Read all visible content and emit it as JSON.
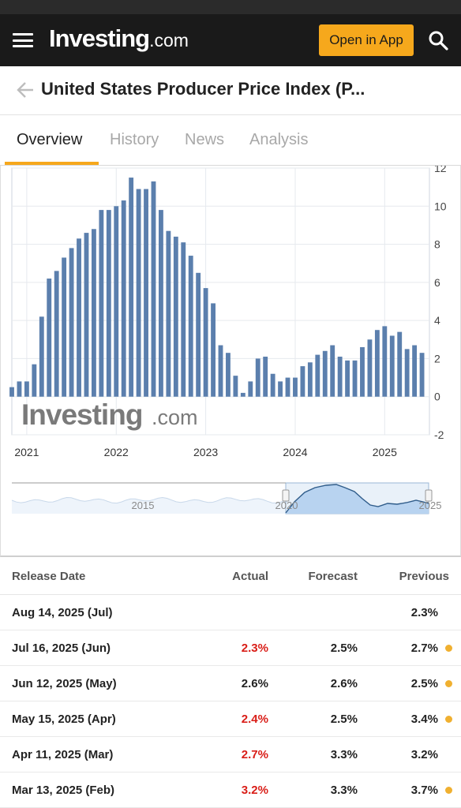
{
  "header": {
    "logo_main": "Investing",
    "logo_suffix": ".com",
    "open_app_label": "Open in App"
  },
  "title": "United States Producer Price Index (P...",
  "tabs": [
    {
      "label": "Overview",
      "active": true
    },
    {
      "label": "History",
      "active": false
    },
    {
      "label": "News",
      "active": false
    },
    {
      "label": "Analysis",
      "active": false
    }
  ],
  "watermark": {
    "main": "Investing",
    "suffix": ".com"
  },
  "colors": {
    "accent": "#f6a81c",
    "bar": "#5b7fad",
    "negative": "#d91e18",
    "revision_dot": "#f0b030"
  },
  "chart_data": {
    "type": "bar",
    "title": "",
    "xlabel": "",
    "ylabel": "",
    "ylim": [
      -2,
      12
    ],
    "y_ticks": [
      "12",
      "10",
      "8",
      "6",
      "4",
      "2",
      "0",
      "-2"
    ],
    "x_ticks": [
      "2021",
      "2022",
      "2023",
      "2024",
      "2025"
    ],
    "x_range": [
      "2020-11",
      "2025-07"
    ],
    "grid": true,
    "series": [
      {
        "x": [
          "2020-11",
          "2020-12",
          "2021-01",
          "2021-02",
          "2021-03",
          "2021-04",
          "2021-05",
          "2021-06",
          "2021-07",
          "2021-08",
          "2021-09",
          "2021-10",
          "2021-11",
          "2021-12",
          "2022-01",
          "2022-02",
          "2022-03",
          "2022-04",
          "2022-05",
          "2022-06",
          "2022-07",
          "2022-08",
          "2022-09",
          "2022-10",
          "2022-11",
          "2022-12",
          "2023-01",
          "2023-02",
          "2023-03",
          "2023-04",
          "2023-05",
          "2023-06",
          "2023-07",
          "2023-08",
          "2023-09",
          "2023-10",
          "2023-11",
          "2023-12",
          "2024-01",
          "2024-02",
          "2024-03",
          "2024-04",
          "2024-05",
          "2024-06",
          "2024-07",
          "2024-08",
          "2024-09",
          "2024-10",
          "2024-11",
          "2024-12",
          "2025-01",
          "2025-02",
          "2025-03",
          "2025-04",
          "2025-05",
          "2025-06"
        ],
        "values": [
          0.5,
          0.8,
          0.8,
          1.7,
          4.2,
          6.2,
          6.6,
          7.3,
          7.8,
          8.3,
          8.6,
          8.8,
          9.8,
          9.8,
          10.0,
          10.3,
          11.5,
          10.9,
          10.9,
          11.3,
          9.8,
          8.7,
          8.4,
          8.1,
          7.4,
          6.5,
          5.7,
          4.9,
          2.7,
          2.3,
          1.1,
          0.2,
          0.8,
          2.0,
          2.1,
          1.2,
          0.8,
          1.0,
          1.0,
          1.6,
          1.8,
          2.2,
          2.4,
          2.7,
          2.1,
          1.9,
          1.9,
          2.6,
          3.0,
          3.5,
          3.7,
          3.2,
          3.4,
          2.5,
          2.7,
          2.3
        ]
      }
    ],
    "navigator": {
      "labels": [
        "2015",
        "2020",
        "2025"
      ]
    }
  },
  "table": {
    "headers": {
      "date": "Release Date",
      "actual": "Actual",
      "forecast": "Forecast",
      "previous": "Previous"
    },
    "rows": [
      {
        "date": "Aug 14, 2025 (Jul)",
        "actual": "",
        "actual_color": "",
        "forecast": "",
        "previous": "2.3%",
        "revised": false
      },
      {
        "date": "Jul 16, 2025 (Jun)",
        "actual": "2.3%",
        "actual_color": "red",
        "forecast": "2.5%",
        "previous": "2.7%",
        "revised": true
      },
      {
        "date": "Jun 12, 2025 (May)",
        "actual": "2.6%",
        "actual_color": "black",
        "forecast": "2.6%",
        "previous": "2.5%",
        "revised": true
      },
      {
        "date": "May 15, 2025 (Apr)",
        "actual": "2.4%",
        "actual_color": "red",
        "forecast": "2.5%",
        "previous": "3.4%",
        "revised": true
      },
      {
        "date": "Apr 11, 2025 (Mar)",
        "actual": "2.7%",
        "actual_color": "red",
        "forecast": "3.3%",
        "previous": "3.2%",
        "revised": false
      },
      {
        "date": "Mar 13, 2025 (Feb)",
        "actual": "3.2%",
        "actual_color": "red",
        "forecast": "3.3%",
        "previous": "3.7%",
        "revised": true
      }
    ]
  }
}
